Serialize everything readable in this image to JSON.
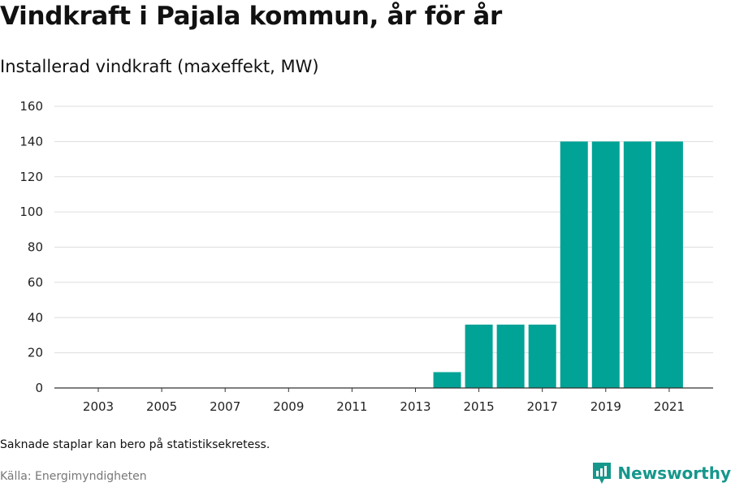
{
  "header": {
    "title": "Vindkraft i Pajala kommun, år för år",
    "subtitle": "Installerad vindkraft (maxeffekt, MW)"
  },
  "footer": {
    "note": "Saknade staplar kan bero på statistiksekretess.",
    "source": "Källa: Energimyndigheten",
    "brand": "Newsworthy"
  },
  "colors": {
    "bar": "#00a396",
    "grid": "#dddddd",
    "axis": "#333333",
    "brand": "#16978c"
  },
  "chart_data": {
    "type": "bar",
    "title": "Vindkraft i Pajala kommun, år för år",
    "subtitle": "Installerad vindkraft (maxeffekt, MW)",
    "categories": [
      "2003",
      "2004",
      "2005",
      "2006",
      "2007",
      "2008",
      "2009",
      "2010",
      "2011",
      "2012",
      "2013",
      "2014",
      "2015",
      "2016",
      "2017",
      "2018",
      "2019",
      "2020",
      "2021"
    ],
    "values": [
      0,
      0,
      0,
      0,
      0,
      0,
      0,
      0,
      0,
      0,
      0,
      9,
      36,
      36,
      36,
      140,
      140,
      140,
      140
    ],
    "x_tick_labels": [
      "2003",
      "2005",
      "2007",
      "2009",
      "2011",
      "2013",
      "2015",
      "2017",
      "2019",
      "2021"
    ],
    "y_ticks": [
      0,
      20,
      40,
      60,
      80,
      100,
      120,
      140,
      160
    ],
    "ylim": [
      0,
      160
    ],
    "xlabel": "",
    "ylabel": "",
    "grid": true,
    "legend": "none"
  }
}
